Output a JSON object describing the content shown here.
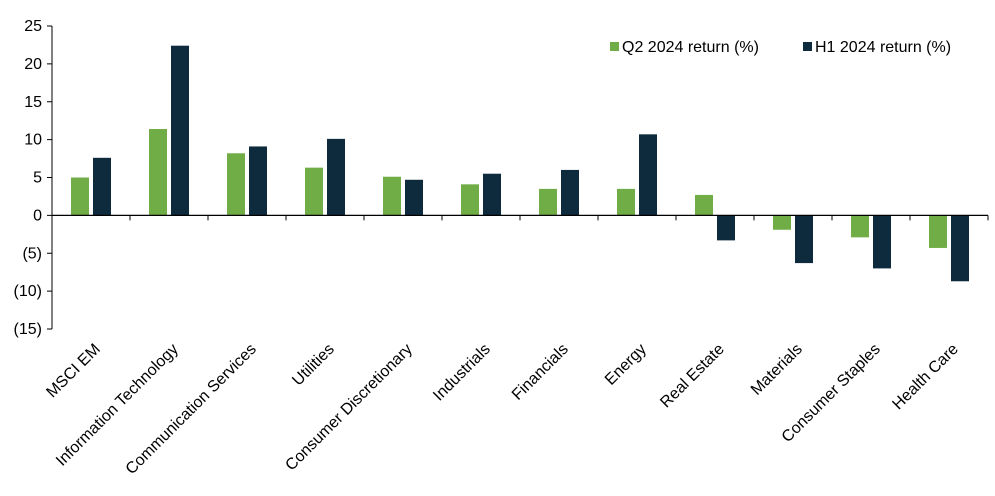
{
  "chart_data": {
    "type": "bar",
    "title": "",
    "xlabel": "",
    "ylabel": "",
    "ylim": [
      -15,
      25
    ],
    "yticks": [
      25,
      20,
      15,
      10,
      5,
      0,
      -5,
      -10,
      -15
    ],
    "ytick_labels": [
      "25",
      "20",
      "15",
      "10",
      "5",
      "0",
      "(5)",
      "(10)",
      "(15)"
    ],
    "grid": false,
    "legend_position": "top-right",
    "categories": [
      "MSCI EM",
      "Information Technology",
      "Communication Services",
      "Utilities",
      "Consumer Discretionary",
      "Industrials",
      "Financials",
      "Energy",
      "Real Estate",
      "Materials",
      "Consumer Staples",
      "Health Care"
    ],
    "series": [
      {
        "name": "Q2 2024 return (%)",
        "color": "#70ad47",
        "values": [
          5.0,
          11.4,
          8.2,
          6.3,
          5.1,
          4.1,
          3.5,
          3.5,
          2.7,
          -1.9,
          -2.9,
          -4.3
        ]
      },
      {
        "name": "H1 2024 return (%)",
        "color": "#0e2b3d",
        "values": [
          7.6,
          22.4,
          9.1,
          10.1,
          4.7,
          5.5,
          6.0,
          10.7,
          -3.3,
          -6.3,
          -7.0,
          -8.7
        ]
      }
    ]
  }
}
